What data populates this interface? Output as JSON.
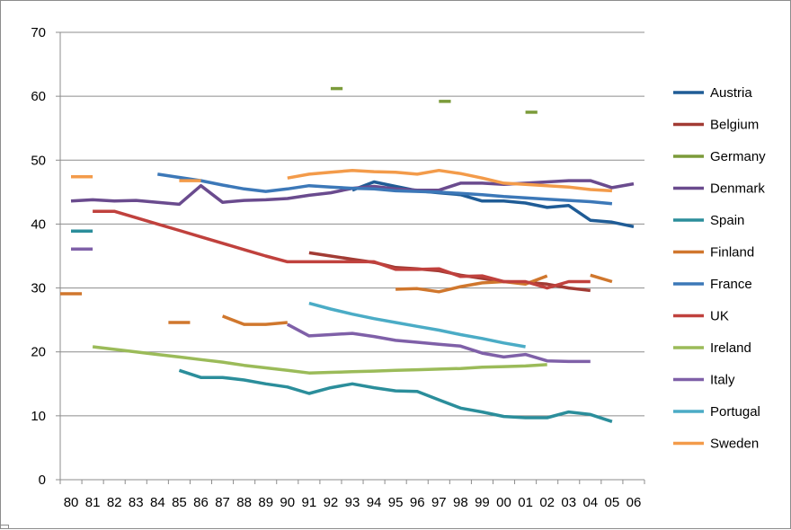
{
  "chart_data": {
    "type": "line",
    "title": "",
    "xlabel": "",
    "ylabel": "",
    "ylim": [
      0,
      70
    ],
    "yticks": [
      0,
      10,
      20,
      30,
      40,
      50,
      60,
      70
    ],
    "categories": [
      "80",
      "81",
      "82",
      "83",
      "84",
      "85",
      "86",
      "87",
      "88",
      "89",
      "90",
      "91",
      "92",
      "93",
      "94",
      "95",
      "96",
      "97",
      "98",
      "99",
      "00",
      "01",
      "02",
      "03",
      "04",
      "05",
      "06"
    ],
    "grid": "horizontal",
    "legend_position": "right",
    "series": [
      {
        "name": "Austria",
        "color": "#1f5c96",
        "values": [
          null,
          null,
          null,
          null,
          null,
          null,
          null,
          null,
          null,
          null,
          null,
          null,
          null,
          45.3,
          46.6,
          45.9,
          45.2,
          44.9,
          44.6,
          43.6,
          43.6,
          43.3,
          42.6,
          42.9,
          40.6,
          40.3,
          39.6
        ]
      },
      {
        "name": "Belgium",
        "color": "#a23b34",
        "values": [
          null,
          null,
          null,
          null,
          null,
          null,
          null,
          null,
          null,
          null,
          null,
          35.5,
          35.0,
          34.5,
          34.0,
          33.2,
          33.0,
          32.7,
          32.0,
          31.5,
          31.0,
          30.9,
          30.6,
          30.0,
          29.6,
          null,
          null
        ]
      },
      {
        "name": "Germany",
        "color": "#7b9b3a",
        "segments": [
          {
            "start": "92",
            "end": "93",
            "value": 61.2
          },
          {
            "start": "97",
            "end": "98",
            "value": 59.2
          },
          {
            "start": "01",
            "end": "02",
            "value": 57.5
          }
        ]
      },
      {
        "name": "Denmark",
        "color": "#6a4b8e",
        "values": [
          43.6,
          43.8,
          43.6,
          43.7,
          43.4,
          43.1,
          46.0,
          43.4,
          43.7,
          43.8,
          44.0,
          44.5,
          44.9,
          45.6,
          45.9,
          45.5,
          45.3,
          45.3,
          46.4,
          46.4,
          46.2,
          46.4,
          46.6,
          46.8,
          46.8,
          45.7,
          46.3
        ]
      },
      {
        "name": "Spain",
        "color": "#2b8e9b",
        "values": [
          38.9,
          38.9,
          null,
          null,
          null,
          17.1,
          16.0,
          16.0,
          15.6,
          15.0,
          14.5,
          13.5,
          14.4,
          15.0,
          14.4,
          13.9,
          13.8,
          12.5,
          11.2,
          10.6,
          9.9,
          9.7,
          9.7,
          10.6,
          10.2,
          9.1,
          null
        ]
      },
      {
        "name": "Finland",
        "color": "#d0772d",
        "values": [
          29.1,
          null,
          null,
          null,
          null,
          24.6,
          null,
          25.6,
          24.3,
          24.3,
          24.6,
          null,
          null,
          null,
          null,
          29.8,
          29.9,
          29.4,
          30.2,
          30.8,
          31.0,
          30.6,
          31.9,
          null,
          32.0,
          31.0,
          null
        ]
      },
      {
        "name": "France",
        "color": "#3c78b8",
        "values": [
          null,
          null,
          null,
          null,
          47.8,
          47.3,
          46.8,
          46.1,
          45.5,
          45.1,
          45.5,
          46.0,
          45.8,
          45.6,
          45.5,
          45.2,
          45.1,
          45.0,
          44.8,
          44.6,
          44.3,
          44.1,
          43.9,
          43.7,
          43.5,
          43.2,
          null
        ]
      },
      {
        "name": "UK",
        "color": "#c0413d",
        "values": [
          null,
          42.0,
          42.0,
          41.0,
          40.0,
          39.0,
          38.0,
          37.0,
          36.0,
          35.0,
          34.1,
          34.1,
          34.1,
          34.1,
          34.1,
          32.9,
          32.9,
          33.0,
          31.8,
          31.9,
          31.0,
          31.0,
          30.0,
          31.0,
          31.0,
          null,
          null
        ]
      },
      {
        "name": "Ireland",
        "color": "#9bbb59",
        "values": [
          null,
          20.8,
          20.4,
          20.0,
          19.6,
          19.2,
          18.8,
          18.4,
          17.9,
          17.5,
          17.1,
          16.7,
          16.8,
          16.9,
          17.0,
          17.1,
          17.2,
          17.3,
          17.4,
          17.6,
          17.7,
          17.8,
          18.0,
          null,
          null,
          null,
          null
        ]
      },
      {
        "name": "Italy",
        "color": "#7f60a8",
        "values": [
          36.1,
          36.1,
          null,
          null,
          null,
          null,
          null,
          null,
          null,
          null,
          24.3,
          22.5,
          22.7,
          22.9,
          22.4,
          21.8,
          21.5,
          21.2,
          20.9,
          19.8,
          19.2,
          19.6,
          18.6,
          18.5,
          18.5,
          null,
          null
        ]
      },
      {
        "name": "Portugal",
        "color": "#4bacc6",
        "values": [
          null,
          null,
          null,
          null,
          null,
          null,
          null,
          null,
          null,
          null,
          null,
          27.6,
          26.7,
          25.9,
          25.2,
          24.6,
          24.0,
          23.4,
          22.7,
          22.1,
          21.4,
          20.8,
          null,
          null,
          null,
          null,
          null
        ]
      },
      {
        "name": "Sweden",
        "color": "#f39b4a",
        "values": [
          47.4,
          47.4,
          null,
          null,
          null,
          46.8,
          46.8,
          null,
          null,
          null,
          47.2,
          47.8,
          48.1,
          48.4,
          48.2,
          48.1,
          47.8,
          48.4,
          47.9,
          47.2,
          46.4,
          46.2,
          46.0,
          45.8,
          45.4,
          45.2,
          null
        ]
      }
    ]
  }
}
